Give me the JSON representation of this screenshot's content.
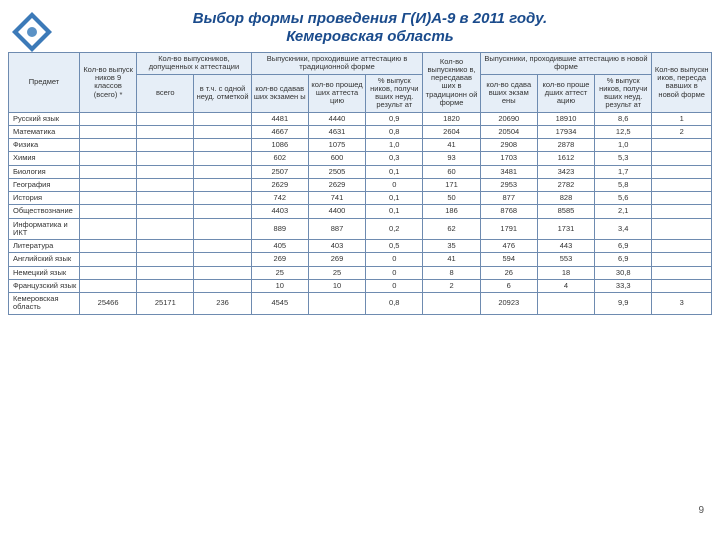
{
  "title_line1": "Выбор формы проведения Г(И)А-9 в 2011 году.",
  "title_line2": "Кемеровская область",
  "page_number": "9",
  "headers": {
    "subject": "Предмет",
    "grad_classes": "Кол-во выпуск ников 9 классов (всего) *",
    "admitted_group": "Кол-во выпускников, допущенных к аттестации",
    "admitted_total": "всего",
    "admitted_with_mark": "в т.ч. с одной неуд. отметкой",
    "trad_group": "Выпускники, проходившие аттестацию в традиционной форме",
    "trad_passed": "кол-во сдавав ших экзамен ы",
    "trad_attested": "кол-во прошед ших аттеста цию",
    "trad_pct": "% выпуск ников, получи вших неуд. результ ат",
    "transferred": "Кол-во выпускнико в, пересдавав ших в традиционн ой форме",
    "new_group": "Выпускники, проходившие аттестацию в новой форме",
    "new_passed": "кол-во сдава вших экзам ены",
    "new_attested": "кол-во проше дших аттест ацию",
    "new_pct": "% выпуск ников, получи вших неуд. результ ат",
    "retook_new": "Кол-во выпускн иков, пересда вавших в новой форме"
  },
  "rows": [
    {
      "subj": "Русский язык",
      "c4": "4481",
      "c5": "4440",
      "c6": "0,9",
      "c7": "1820",
      "c8": "20690",
      "c9": "18910",
      "c10": "8,6",
      "c11": "1"
    },
    {
      "subj": "Математика",
      "c4": "4667",
      "c5": "4631",
      "c6": "0,8",
      "c7": "2604",
      "c8": "20504",
      "c9": "17934",
      "c10": "12,5",
      "c11": "2"
    },
    {
      "subj": "Физика",
      "c4": "1086",
      "c5": "1075",
      "c6": "1,0",
      "c7": "41",
      "c8": "2908",
      "c9": "2878",
      "c10": "1,0",
      "c11": ""
    },
    {
      "subj": "Химия",
      "c4": "602",
      "c5": "600",
      "c6": "0,3",
      "c7": "93",
      "c8": "1703",
      "c9": "1612",
      "c10": "5,3",
      "c11": ""
    },
    {
      "subj": "Биология",
      "c4": "2507",
      "c5": "2505",
      "c6": "0,1",
      "c7": "60",
      "c8": "3481",
      "c9": "3423",
      "c10": "1,7",
      "c11": ""
    },
    {
      "subj": "География",
      "c4": "2629",
      "c5": "2629",
      "c6": "0",
      "c7": "171",
      "c8": "2953",
      "c9": "2782",
      "c10": "5,8",
      "c11": ""
    },
    {
      "subj": "История",
      "c4": "742",
      "c5": "741",
      "c6": "0,1",
      "c7": "50",
      "c8": "877",
      "c9": "828",
      "c10": "5,6",
      "c11": ""
    },
    {
      "subj": "Обществознание",
      "c4": "4403",
      "c5": "4400",
      "c6": "0,1",
      "c7": "186",
      "c8": "8768",
      "c9": "8585",
      "c10": "2,1",
      "c11": ""
    },
    {
      "subj": "Информатика и ИКТ",
      "c4": "889",
      "c5": "887",
      "c6": "0,2",
      "c7": "62",
      "c8": "1791",
      "c9": "1731",
      "c10": "3,4",
      "c11": ""
    },
    {
      "subj": "Литература",
      "c4": "405",
      "c5": "403",
      "c6": "0,5",
      "c7": "35",
      "c8": "476",
      "c9": "443",
      "c10": "6,9",
      "c11": ""
    },
    {
      "subj": "Английский язык",
      "c4": "269",
      "c5": "269",
      "c6": "0",
      "c7": "41",
      "c8": "594",
      "c9": "553",
      "c10": "6,9",
      "c11": ""
    },
    {
      "subj": "Немецкий язык",
      "c4": "25",
      "c5": "25",
      "c6": "0",
      "c7": "8",
      "c8": "26",
      "c9": "18",
      "c10": "30,8",
      "c11": ""
    },
    {
      "subj": "Французский язык",
      "c4": "10",
      "c5": "10",
      "c6": "0",
      "c7": "2",
      "c8": "6",
      "c9": "4",
      "c10": "33,3",
      "c11": ""
    }
  ],
  "total": {
    "subj": "Кемеровская область",
    "c1": "25466",
    "c2": "25171",
    "c3": "236",
    "c4": "4545",
    "c5": "",
    "c6": "0,8",
    "c7": "",
    "c8": "20923",
    "c9": "",
    "c10": "9,9",
    "c11": "3"
  }
}
